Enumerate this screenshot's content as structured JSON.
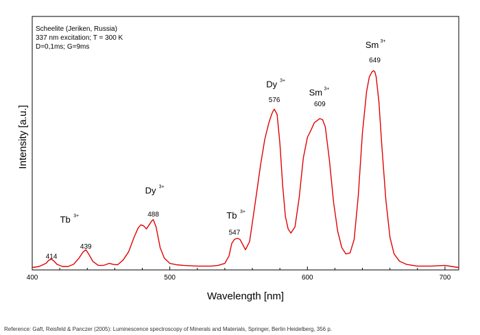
{
  "chart_data": {
    "type": "line",
    "title": "",
    "xlabel": "Wavelength [nm]",
    "ylabel": "Intensity [a.u.]",
    "xlim": [
      400,
      710
    ],
    "ylim": [
      0,
      1
    ],
    "x_ticks": [
      "400",
      "500",
      "600",
      "700"
    ],
    "grid": false,
    "line_color": "#e00000",
    "notes": [
      "Scheelite (Jeriken, Russia)",
      "337 nm excitation; T = 300 K",
      "D=0,1ms; G=9ms"
    ],
    "peak_labels": [
      {
        "text": "414",
        "x": 414,
        "y": 0.047
      },
      {
        "text": "439",
        "x": 439,
        "y": 0.095
      },
      {
        "text": "488",
        "x": 488,
        "y": 0.25
      },
      {
        "text": "547",
        "x": 547,
        "y": 0.163
      },
      {
        "text": "576",
        "x": 576,
        "y": 0.8
      },
      {
        "text": "609",
        "x": 609,
        "y": 0.78
      },
      {
        "text": "649",
        "x": 649,
        "y": 0.99
      }
    ],
    "ion_labels": [
      {
        "text": "Tb",
        "sup": "3+",
        "x": 426,
        "y": 0.22
      },
      {
        "text": "Dy",
        "sup": "3+",
        "x": 488,
        "y": 0.36
      },
      {
        "text": "Tb",
        "sup": "3+",
        "x": 547,
        "y": 0.24
      },
      {
        "text": "Dy",
        "sup": "3+",
        "x": 576,
        "y": 0.87
      },
      {
        "text": "Sm",
        "sup": "3+",
        "x": 608,
        "y": 0.83
      },
      {
        "text": "Sm",
        "sup": "3+",
        "x": 649,
        "y": 1.06
      }
    ],
    "series": [
      {
        "x": [
          400,
          405,
          410,
          412,
          414,
          416,
          418,
          422,
          426,
          430,
          434,
          437,
          439,
          441,
          444,
          448,
          452,
          456,
          459,
          462,
          466,
          470,
          474,
          477,
          479,
          481,
          483,
          485,
          487,
          488,
          490,
          493,
          496,
          500,
          505,
          510,
          520,
          530,
          535,
          540,
          543,
          545,
          547,
          549,
          551,
          555,
          558,
          560,
          563,
          566,
          569,
          572,
          574,
          575,
          576,
          578,
          580,
          582,
          584,
          586,
          588,
          591,
          594,
          597,
          600,
          603,
          605,
          607,
          609,
          611,
          613,
          616,
          619,
          622,
          625,
          628,
          631,
          634,
          637,
          640,
          643,
          645,
          647,
          648,
          649,
          650,
          652,
          654,
          657,
          660,
          663,
          667,
          672,
          680,
          690,
          700,
          705,
          710
        ],
        "y": [
          0.005,
          0.01,
          0.025,
          0.04,
          0.045,
          0.035,
          0.02,
          0.01,
          0.01,
          0.02,
          0.05,
          0.08,
          0.09,
          0.07,
          0.035,
          0.015,
          0.015,
          0.025,
          0.02,
          0.018,
          0.04,
          0.08,
          0.15,
          0.195,
          0.21,
          0.205,
          0.19,
          0.21,
          0.23,
          0.235,
          0.2,
          0.1,
          0.05,
          0.025,
          0.018,
          0.015,
          0.012,
          0.012,
          0.015,
          0.025,
          0.06,
          0.12,
          0.14,
          0.145,
          0.14,
          0.09,
          0.13,
          0.22,
          0.36,
          0.5,
          0.62,
          0.7,
          0.74,
          0.755,
          0.765,
          0.74,
          0.6,
          0.4,
          0.25,
          0.19,
          0.17,
          0.2,
          0.34,
          0.53,
          0.63,
          0.67,
          0.7,
          0.71,
          0.72,
          0.715,
          0.68,
          0.52,
          0.32,
          0.18,
          0.1,
          0.07,
          0.075,
          0.14,
          0.35,
          0.65,
          0.85,
          0.92,
          0.945,
          0.95,
          0.945,
          0.92,
          0.8,
          0.6,
          0.33,
          0.15,
          0.07,
          0.035,
          0.02,
          0.012,
          0.012,
          0.015,
          0.01,
          0.005
        ]
      }
    ]
  },
  "reference": "Reference: Gaft, Reisfeld & Panczer (2005): Luminescence spectroscopy of Minerals and Materials, Springer, Berlin Heidelberg, 356 p."
}
